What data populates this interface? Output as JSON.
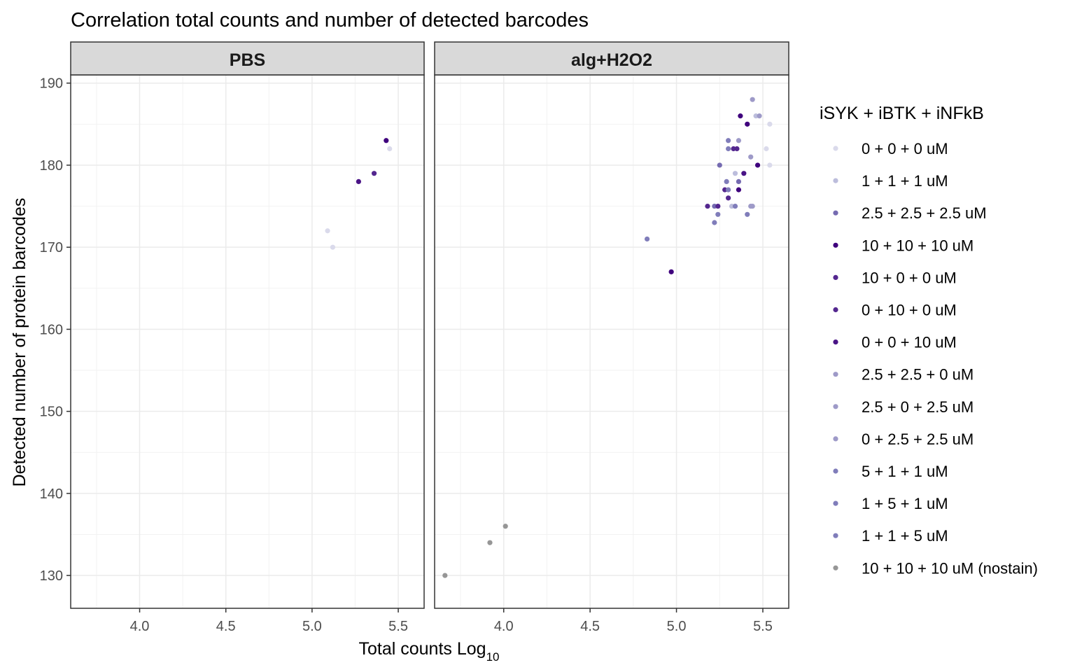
{
  "chart_data": {
    "type": "scatter",
    "title": "Correlation total counts and number of detected barcodes",
    "xlabel": "Total counts Log",
    "xlabel_sub": "10",
    "ylabel": "Detected number of protein barcodes",
    "xlim": [
      3.6,
      5.65
    ],
    "ylim": [
      126,
      191
    ],
    "x_ticks": [
      4.0,
      4.5,
      5.0,
      5.5
    ],
    "x_tick_labels": [
      "4.0",
      "4.5",
      "5.0",
      "5.5"
    ],
    "y_ticks": [
      130,
      140,
      150,
      160,
      170,
      180,
      190
    ],
    "y_tick_labels": [
      "130",
      "140",
      "150",
      "160",
      "170",
      "180",
      "190"
    ],
    "grid": true,
    "legend_position": "right",
    "legend_title": "iSYK + iBTK + iNFkB",
    "series": [
      {
        "name": "0 + 0 + 0 uM",
        "color": "#dadaeb"
      },
      {
        "name": "1 + 1 + 1 uM",
        "color": "#bcbddc"
      },
      {
        "name": "2.5 + 2.5 + 2.5 uM",
        "color": "#756bb1"
      },
      {
        "name": "10 + 10 + 10 uM",
        "color": "#3f007d"
      },
      {
        "name": "10 + 0 + 0 uM",
        "color": "#54278f"
      },
      {
        "name": "0 + 10 + 0 uM",
        "color": "#54278f"
      },
      {
        "name": "0 + 0 + 10 uM",
        "color": "#4a1486"
      },
      {
        "name": "2.5 + 2.5 + 0 uM",
        "color": "#9e9ac8"
      },
      {
        "name": "2.5 + 0 + 2.5 uM",
        "color": "#9e9ac8"
      },
      {
        "name": "0 + 2.5 + 2.5 uM",
        "color": "#9e9ac8"
      },
      {
        "name": "5 + 1 + 1 uM",
        "color": "#807dba"
      },
      {
        "name": "1 + 5 + 1 uM",
        "color": "#807dba"
      },
      {
        "name": "1 + 1 + 5 uM",
        "color": "#807dba"
      },
      {
        "name": "10 + 10 + 10 uM (nostain)",
        "color": "#969696"
      }
    ],
    "panels": [
      {
        "label": "PBS",
        "points": [
          {
            "x": 5.43,
            "y": 183,
            "s": 3
          },
          {
            "x": 5.45,
            "y": 182,
            "s": 0
          },
          {
            "x": 5.36,
            "y": 179,
            "s": 4
          },
          {
            "x": 5.27,
            "y": 178,
            "s": 6
          },
          {
            "x": 5.09,
            "y": 172,
            "s": 0
          },
          {
            "x": 5.12,
            "y": 170,
            "s": 0
          }
        ]
      },
      {
        "label": "alg+H2O2",
        "points": [
          {
            "x": 5.44,
            "y": 188,
            "s": 7
          },
          {
            "x": 5.37,
            "y": 186,
            "s": 3
          },
          {
            "x": 5.46,
            "y": 186,
            "s": 1
          },
          {
            "x": 5.48,
            "y": 186,
            "s": 8
          },
          {
            "x": 5.41,
            "y": 185,
            "s": 3
          },
          {
            "x": 5.54,
            "y": 185,
            "s": 0
          },
          {
            "x": 5.3,
            "y": 183,
            "s": 10
          },
          {
            "x": 5.36,
            "y": 183,
            "s": 9
          },
          {
            "x": 5.3,
            "y": 182,
            "s": 11
          },
          {
            "x": 5.33,
            "y": 182,
            "s": 4
          },
          {
            "x": 5.35,
            "y": 182,
            "s": 5
          },
          {
            "x": 5.52,
            "y": 182,
            "s": 0
          },
          {
            "x": 5.43,
            "y": 181,
            "s": 9
          },
          {
            "x": 5.25,
            "y": 180,
            "s": 2
          },
          {
            "x": 5.47,
            "y": 180,
            "s": 3
          },
          {
            "x": 5.54,
            "y": 180,
            "s": 0
          },
          {
            "x": 5.34,
            "y": 179,
            "s": 1
          },
          {
            "x": 5.39,
            "y": 179,
            "s": 6
          },
          {
            "x": 5.29,
            "y": 178,
            "s": 12
          },
          {
            "x": 5.36,
            "y": 178,
            "s": 2
          },
          {
            "x": 5.28,
            "y": 177,
            "s": 4
          },
          {
            "x": 5.3,
            "y": 177,
            "s": 10
          },
          {
            "x": 5.36,
            "y": 177,
            "s": 3
          },
          {
            "x": 5.3,
            "y": 176,
            "s": 5
          },
          {
            "x": 5.18,
            "y": 175,
            "s": 4
          },
          {
            "x": 5.22,
            "y": 175,
            "s": 2
          },
          {
            "x": 5.24,
            "y": 175,
            "s": 5
          },
          {
            "x": 5.32,
            "y": 175,
            "s": 1
          },
          {
            "x": 5.34,
            "y": 175,
            "s": 11
          },
          {
            "x": 5.43,
            "y": 175,
            "s": 8
          },
          {
            "x": 5.44,
            "y": 175,
            "s": 9
          },
          {
            "x": 5.24,
            "y": 174,
            "s": 12
          },
          {
            "x": 5.41,
            "y": 174,
            "s": 10
          },
          {
            "x": 5.22,
            "y": 173,
            "s": 11
          },
          {
            "x": 4.83,
            "y": 171,
            "s": 12
          },
          {
            "x": 4.97,
            "y": 167,
            "s": 3
          },
          {
            "x": 4.01,
            "y": 136,
            "s": 13
          },
          {
            "x": 3.92,
            "y": 134,
            "s": 13
          },
          {
            "x": 3.66,
            "y": 130,
            "s": 13
          }
        ]
      }
    ]
  }
}
